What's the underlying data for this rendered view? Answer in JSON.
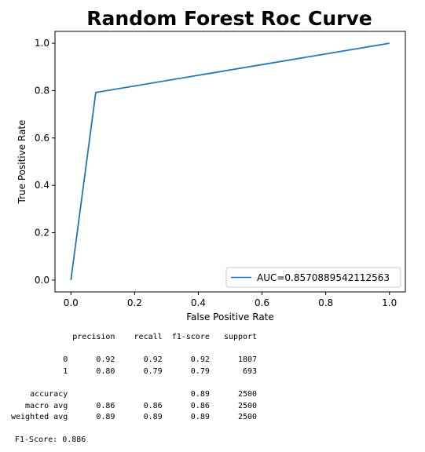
{
  "chart_data": {
    "type": "line",
    "title": "Random Forest Roc Curve",
    "xlabel": "False Positive Rate",
    "ylabel": "True Positive Rate",
    "xlim": [
      -0.05,
      1.05
    ],
    "ylim": [
      -0.05,
      1.05
    ],
    "xticks": [
      "0.0",
      "0.2",
      "0.4",
      "0.6",
      "0.8",
      "1.0"
    ],
    "yticks": [
      "0.0",
      "0.2",
      "0.4",
      "0.6",
      "0.8",
      "1.0"
    ],
    "grid": false,
    "legend_position": "lower-right",
    "series": [
      {
        "name": "AUC=0.8570889542112563",
        "color": "#1f77b4",
        "x": [
          0.0,
          0.078,
          1.0
        ],
        "y": [
          0.0,
          0.792,
          1.0
        ]
      }
    ]
  },
  "report": {
    "columns": [
      "precision",
      "recall",
      "f1-score",
      "support"
    ],
    "rows": [
      {
        "label": "0",
        "precision": "0.92",
        "recall": "0.92",
        "f1": "0.92",
        "support": "1807"
      },
      {
        "label": "1",
        "precision": "0.80",
        "recall": "0.79",
        "f1": "0.79",
        "support": "693"
      },
      {
        "label": "",
        "precision": "",
        "recall": "",
        "f1": "",
        "support": ""
      },
      {
        "label": "accuracy",
        "precision": "",
        "recall": "",
        "f1": "0.89",
        "support": "2500"
      },
      {
        "label": "macro avg",
        "precision": "0.86",
        "recall": "0.86",
        "f1": "0.86",
        "support": "2500"
      },
      {
        "label": "weighted avg",
        "precision": "0.89",
        "recall": "0.89",
        "f1": "0.89",
        "support": "2500"
      }
    ],
    "f1_score_line": "F1-Score: 0.886"
  }
}
